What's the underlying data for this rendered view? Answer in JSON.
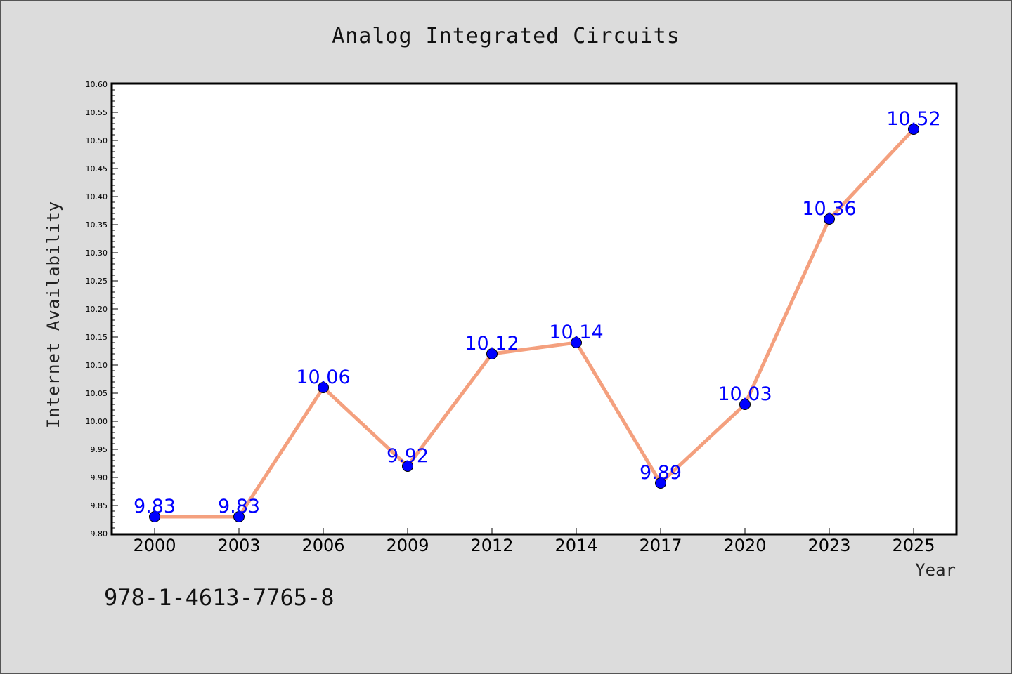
{
  "chart_data": {
    "type": "line",
    "title": "Analog Integrated Circuits",
    "xlabel": "Year",
    "ylabel": "Internet Availability",
    "categories": [
      "2000",
      "2003",
      "2006",
      "2009",
      "2012",
      "2014",
      "2017",
      "2020",
      "2023",
      "2025"
    ],
    "series": [
      {
        "values": [
          9.83,
          9.83,
          10.06,
          9.92,
          10.12,
          10.14,
          9.89,
          10.03,
          10.36,
          10.52
        ],
        "line_color": "#f4a07e",
        "marker_color": "#0000ff"
      }
    ],
    "data_labels": [
      "9.83",
      "9.83",
      "10.06",
      "9.92",
      "10.12",
      "10.14",
      "9.89",
      "10.03",
      "10.36",
      "10.52"
    ],
    "ylim": [
      9.8,
      10.6
    ],
    "yticks": [
      "9.80",
      "9.85",
      "9.90",
      "9.95",
      "10.00",
      "10.05",
      "10.10",
      "10.15",
      "10.20",
      "10.25",
      "10.30",
      "10.35",
      "10.40",
      "10.45",
      "10.50",
      "10.55",
      "10.60"
    ],
    "grid": false,
    "legend": "none",
    "data_label_color": "#0000ff"
  },
  "footer": {
    "isbn": "978-1-4613-7765-8"
  }
}
